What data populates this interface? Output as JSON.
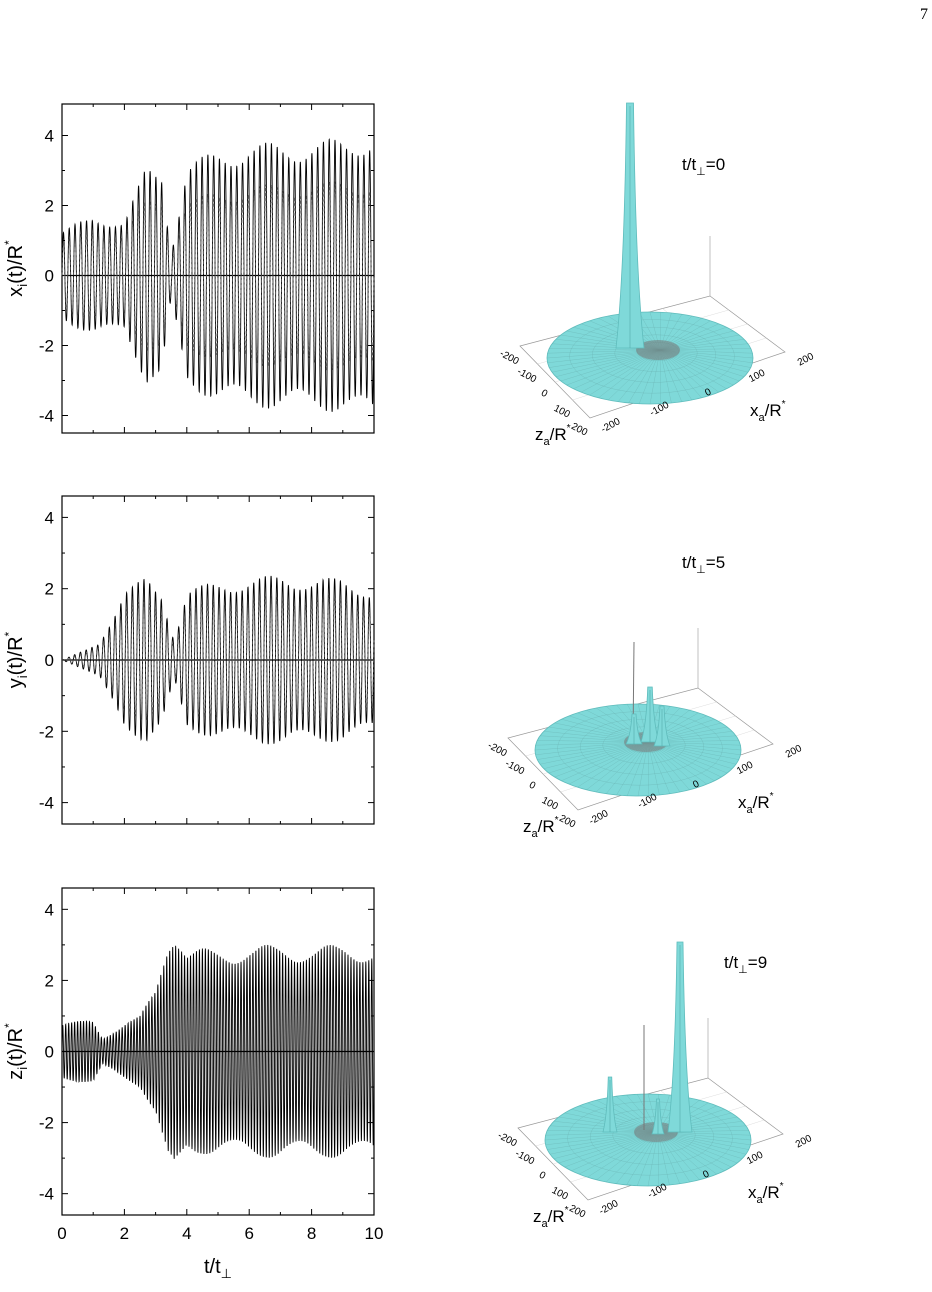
{
  "page_number": "7",
  "chart_data": [
    {
      "type": "line",
      "id": "x",
      "ylabel": {
        "main": "x",
        "sub": "i",
        "mid": "(t)/R",
        "sup": "*"
      },
      "xlabel": "",
      "xlim": [
        0,
        10
      ],
      "ylim": [
        -4.5,
        5
      ],
      "yticks": [
        "4",
        "2",
        "0",
        "-2",
        "-4"
      ],
      "xticks": [],
      "series": [
        {
          "style": "solid",
          "x": [
            0,
            1,
            2,
            2.7,
            3.2,
            3.5,
            4,
            5,
            6,
            7,
            8,
            9,
            10
          ],
          "envelope": [
            1.3,
            1.7,
            1.6,
            3.1,
            3.0,
            0.7,
            3.2,
            3.6,
            3.8,
            3.8,
            3.9,
            3.9,
            4.2
          ]
        },
        {
          "style": "dashed",
          "x": [
            0,
            1,
            2,
            2.7,
            3.2,
            3.5,
            4,
            5,
            6,
            7,
            8,
            9,
            10
          ],
          "envelope": [
            1.0,
            1.3,
            1.2,
            2.2,
            2.2,
            0.5,
            2.2,
            2.4,
            2.6,
            2.6,
            2.7,
            2.7,
            2.8
          ]
        }
      ],
      "snapshots": [
        0
      ]
    },
    {
      "type": "line",
      "id": "y",
      "ylabel": {
        "main": "y",
        "sub": "i",
        "mid": "(t)/R",
        "sup": "*"
      },
      "xlabel": "",
      "xlim": [
        0,
        10
      ],
      "ylim": [
        -4.5,
        4.5
      ],
      "yticks": [
        "4",
        "2",
        "0",
        "-2",
        "-4"
      ],
      "xticks": [],
      "series": [
        {
          "style": "solid",
          "x": [
            0,
            0.8,
            1.2,
            2,
            2.7,
            3.2,
            3.6,
            4,
            5,
            6,
            7,
            8,
            9,
            10
          ],
          "envelope": [
            0,
            0.3,
            0.5,
            2.0,
            2.3,
            1.9,
            0.6,
            2.0,
            2.2,
            2.3,
            2.4,
            2.3,
            2.3,
            2.0
          ]
        },
        {
          "style": "dashed",
          "x": [
            0,
            0.8,
            1.2,
            2,
            2.7,
            3.2,
            3.6,
            4,
            5,
            6,
            7,
            8,
            9,
            10
          ],
          "envelope": [
            0,
            0.2,
            0.4,
            1.5,
            1.7,
            1.4,
            0.4,
            1.5,
            1.7,
            1.8,
            1.8,
            1.8,
            1.8,
            1.6
          ]
        }
      ],
      "snapshots": [
        5
      ]
    },
    {
      "type": "line",
      "id": "z",
      "ylabel": {
        "main": "z",
        "sub": "i",
        "mid": "(t)/R",
        "sup": "*"
      },
      "xlabel": {
        "main": "t/t",
        "sub": "⊥"
      },
      "xlim": [
        0,
        10
      ],
      "ylim": [
        -4.5,
        4.5
      ],
      "yticks": [
        "4",
        "2",
        "0",
        "-2",
        "-4"
      ],
      "xticks": [
        "0",
        "2",
        "4",
        "6",
        "8",
        "10"
      ],
      "series": [
        {
          "style": "solid",
          "x": [
            0,
            1,
            1.3,
            2,
            2.5,
            3,
            3.4,
            3.6,
            3.8,
            4,
            5,
            6,
            7,
            8,
            9,
            10
          ],
          "envelope": [
            0.8,
            0.9,
            0.4,
            0.8,
            1.0,
            1.8,
            3.3,
            3.6,
            3.3,
            2.9,
            2.9,
            3.0,
            3.0,
            3.0,
            3.0,
            3.0
          ]
        }
      ],
      "snapshots": [
        9
      ]
    }
  ],
  "surfaces": [
    {
      "id": "s0",
      "time_label": {
        "main": "t/t",
        "sub": "⊥",
        "rest": "=0"
      }
    },
    {
      "id": "s5",
      "time_label": {
        "main": "t/t",
        "sub": "⊥",
        "rest": "=5"
      }
    },
    {
      "id": "s9",
      "time_label": {
        "main": "t/t",
        "sub": "⊥",
        "rest": "=9"
      }
    }
  ],
  "surface_axes": {
    "z_label": {
      "main": "z",
      "sub": "a",
      "mid": "/R",
      "sup": "*"
    },
    "x_label": {
      "main": "x",
      "sub": "a",
      "mid": "/R",
      "sup": "*"
    },
    "z_ticks": [
      "-200",
      "-100",
      "0",
      "100",
      "200"
    ],
    "x_ticks": [
      "-200",
      "-100",
      "0",
      "100",
      "200"
    ]
  },
  "colors": {
    "surface": "#7fd9d9",
    "surface_dark": "#5fbcbc",
    "line": "#000000",
    "mesh": "#888888"
  }
}
